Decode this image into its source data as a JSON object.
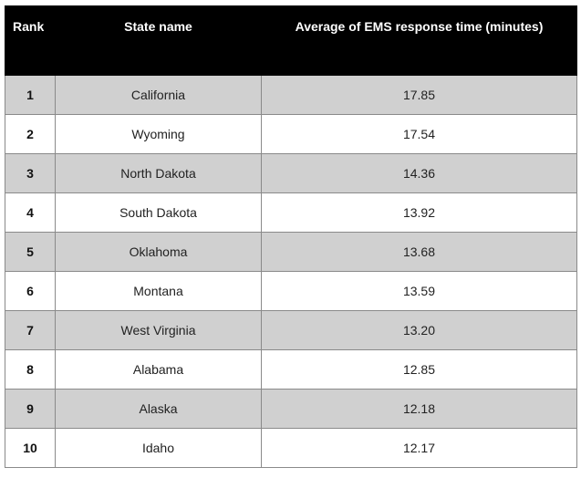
{
  "chart_data": {
    "type": "table",
    "columns": [
      "Rank",
      "State name",
      "Average of EMS response time (minutes)"
    ],
    "rows": [
      {
        "rank": "1",
        "state": "California",
        "avg": "17.85"
      },
      {
        "rank": "2",
        "state": "Wyoming",
        "avg": "17.54"
      },
      {
        "rank": "3",
        "state": "North Dakota",
        "avg": "14.36"
      },
      {
        "rank": "4",
        "state": "South Dakota",
        "avg": "13.92"
      },
      {
        "rank": "5",
        "state": "Oklahoma",
        "avg": "13.68"
      },
      {
        "rank": "6",
        "state": "Montana",
        "avg": "13.59"
      },
      {
        "rank": "7",
        "state": "West Virginia",
        "avg": "13.20"
      },
      {
        "rank": "8",
        "state": "Alabama",
        "avg": "12.85"
      },
      {
        "rank": "9",
        "state": "Alaska",
        "avg": "12.18"
      },
      {
        "rank": "10",
        "state": "Idaho",
        "avg": "12.17"
      }
    ]
  },
  "colors": {
    "header_bg": "#000000",
    "header_text": "#ffffff",
    "row_shade": "#d0d0d0",
    "row_plain": "#ffffff",
    "border": "#8a8a8a"
  }
}
